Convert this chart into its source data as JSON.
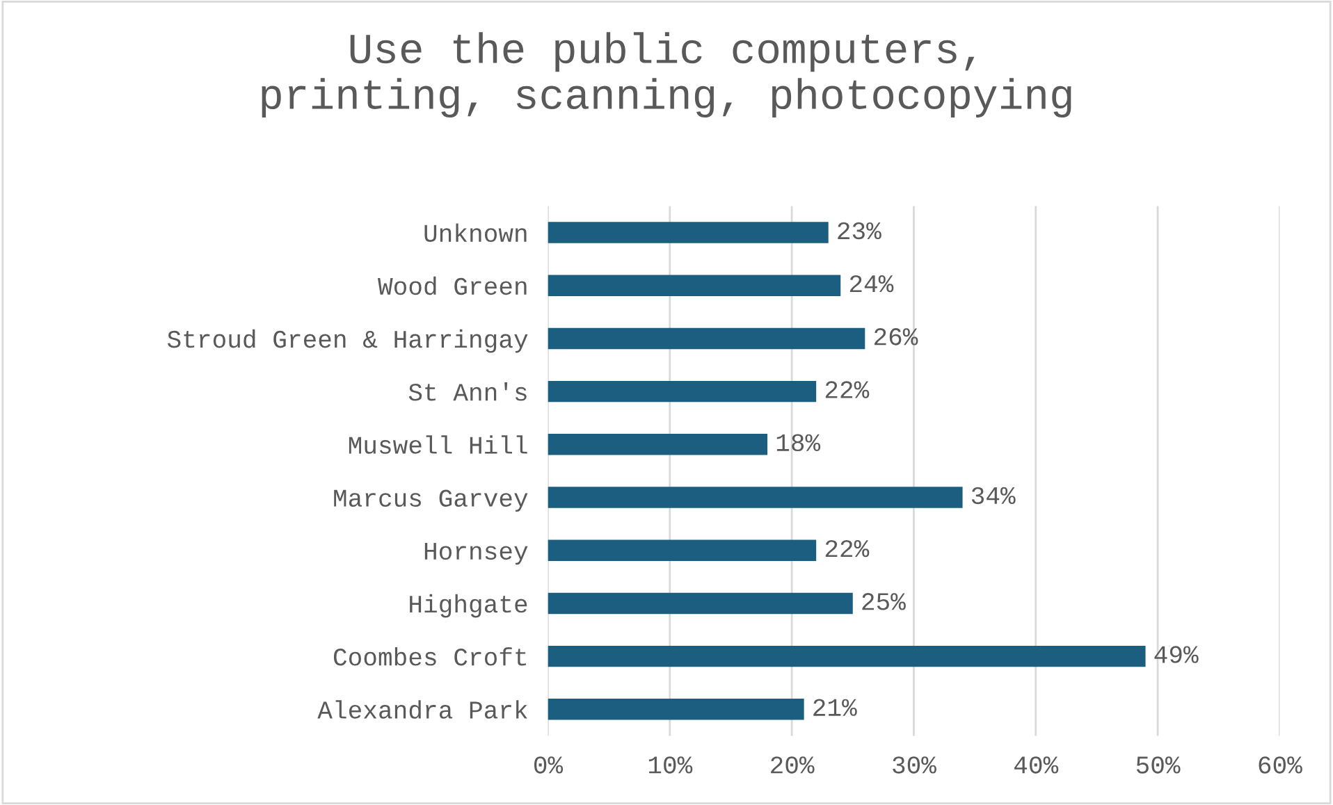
{
  "chart_data": {
    "type": "bar",
    "orientation": "horizontal",
    "title": "Use the public computers,\nprinting, scanning, photocopying",
    "categories": [
      "Unknown",
      "Wood Green",
      "Stroud Green & Harringay",
      "St Ann's",
      "Muswell Hill",
      "Marcus Garvey",
      "Hornsey",
      "Highgate",
      "Coombes Croft",
      "Alexandra Park"
    ],
    "values": [
      23,
      24,
      26,
      22,
      18,
      34,
      22,
      25,
      49,
      21
    ],
    "value_labels": [
      "23%",
      "24%",
      "26%",
      "22%",
      "18%",
      "34%",
      "22%",
      "25%",
      "49%",
      "21%"
    ],
    "color": "#1b5e80",
    "xlim": [
      0,
      60
    ],
    "xticks": [
      {
        "value": 0,
        "label": "0%"
      },
      {
        "value": 10,
        "label": "10%"
      },
      {
        "value": 20,
        "label": "20%"
      },
      {
        "value": 30,
        "label": "30%"
      },
      {
        "value": 40,
        "label": "40%"
      },
      {
        "value": 50,
        "label": "50%"
      },
      {
        "value": 60,
        "label": "60%"
      }
    ],
    "grid": "x",
    "legend": false
  }
}
